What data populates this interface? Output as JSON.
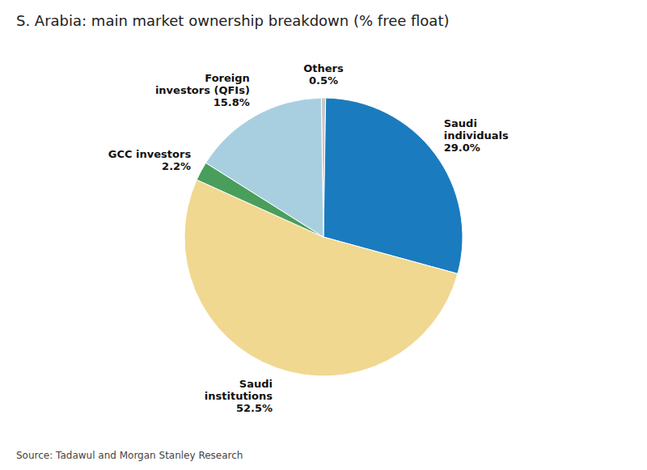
{
  "chart_data": {
    "type": "pie",
    "title": "S. Arabia: main market ownership breakdown  (% free float)",
    "source": "Source: Tadawul and Morgan Stanley Research",
    "categories": [
      "Others",
      "Saudi\nindividuals",
      "Saudi\ninstitutions",
      "GCC investors",
      "Foreign\ninvestors (QFIs)"
    ],
    "values": [
      0.5,
      29.0,
      52.5,
      2.2,
      15.8
    ],
    "value_labels": [
      "0.5%",
      "29.0%",
      "52.5%",
      "2.2%",
      "15.8%"
    ],
    "colors": [
      "#c8c8c8",
      "#1a7bbf",
      "#f0d890",
      "#4a9e5c",
      "#a8cfe0"
    ],
    "data_labels": true
  }
}
